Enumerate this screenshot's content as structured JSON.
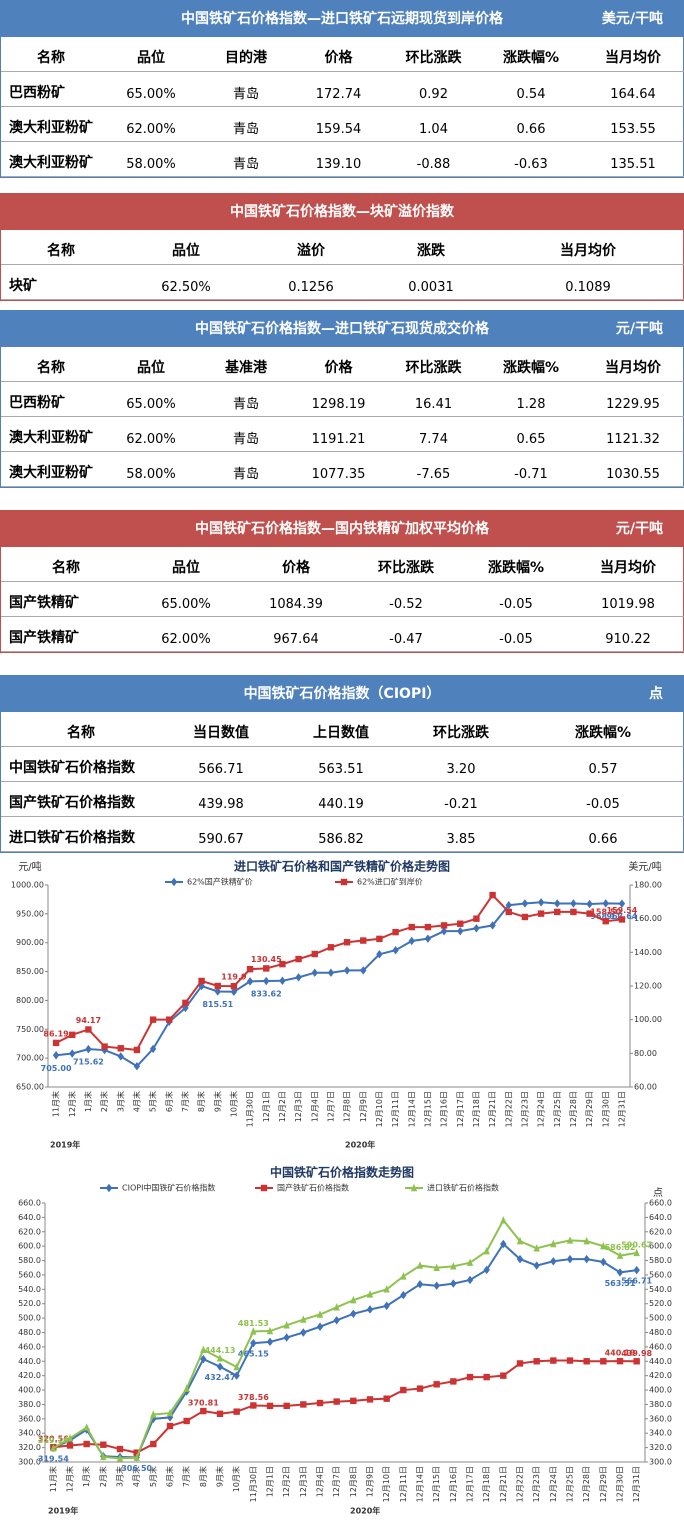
{
  "tables": [
    {
      "title": "中国铁矿石价格指数—进口铁矿石远期现货到岸价格",
      "unit": "美元/干吨",
      "color": "#4f81bd",
      "columns": [
        "名称",
        "品位",
        "目的港",
        "价格",
        "环比涨跌",
        "涨跌幅%",
        "当月均价"
      ],
      "rows": [
        [
          "巴西粉矿",
          "65.00%",
          "青岛",
          "172.74",
          "0.92",
          "0.54",
          "164.64"
        ],
        [
          "澳大利亚粉矿",
          "62.00%",
          "青岛",
          "159.54",
          "1.04",
          "0.66",
          "153.55"
        ],
        [
          "澳大利亚粉矿",
          "58.00%",
          "青岛",
          "139.10",
          "-0.88",
          "-0.63",
          "135.51"
        ]
      ]
    },
    {
      "title": "中国铁矿石价格指数—块矿溢价指数",
      "color": "#c0504d",
      "columns": [
        "名称",
        "品位",
        "溢价",
        "涨跌",
        "当月均价"
      ],
      "rows": [
        [
          "块矿",
          "62.50%",
          "0.1256",
          "0.0031",
          "0.1089"
        ]
      ]
    },
    {
      "title": "中国铁矿石价格指数—进口铁矿石现货成交价格",
      "unit": "元/干吨",
      "color": "#4f81bd",
      "columns": [
        "名称",
        "品位",
        "基准港",
        "价格",
        "环比涨跌",
        "涨跌幅%",
        "当月均价"
      ],
      "rows": [
        [
          "巴西粉矿",
          "65.00%",
          "青岛",
          "1298.19",
          "16.41",
          "1.28",
          "1229.95"
        ],
        [
          "澳大利亚粉矿",
          "62.00%",
          "青岛",
          "1191.21",
          "7.74",
          "0.65",
          "1121.32"
        ],
        [
          "澳大利亚粉矿",
          "58.00%",
          "青岛",
          "1077.35",
          "-7.65",
          "-0.71",
          "1030.55"
        ]
      ]
    },
    {
      "title": "中国铁矿石价格指数—国内铁精矿加权平均价格",
      "unit": "元/干吨",
      "color": "#c0504d",
      "columns": [
        "名称",
        "品位",
        "价格",
        "环比涨跌",
        "涨跌幅%",
        "当月均价"
      ],
      "rows": [
        [
          "国产铁精矿",
          "65.00%",
          "1084.39",
          "-0.52",
          "-0.05",
          "1019.98"
        ],
        [
          "国产铁精矿",
          "62.00%",
          "967.64",
          "-0.47",
          "-0.05",
          "910.22"
        ]
      ]
    },
    {
      "title": "中国铁矿石价格指数（CIOPI）",
      "unit": "点",
      "color": "#4f81bd",
      "columns": [
        "名称",
        "当日数值",
        "上日数值",
        "环比涨跌",
        "涨跌幅%"
      ],
      "rows": [
        [
          "中国铁矿石价格指数",
          "566.71",
          "563.51",
          "3.20",
          "0.57"
        ],
        [
          "国产铁矿石价格指数",
          "439.98",
          "440.19",
          "-0.21",
          "-0.05"
        ],
        [
          "进口铁矿石价格指数",
          "590.67",
          "586.82",
          "3.85",
          "0.66"
        ]
      ]
    }
  ],
  "chart_data": [
    {
      "type": "line",
      "title": "进口铁矿石价格和国产铁精矿价格走势图",
      "y_label": "元/吨",
      "y2_label": "美元/吨",
      "years": [
        "2019年",
        "2020年"
      ],
      "categories": [
        "11月末",
        "12月末",
        "1月末",
        "2月末",
        "3月末",
        "4月末",
        "5月末",
        "6月末",
        "7月末",
        "8月末",
        "9月末",
        "10月末",
        "11月30日",
        "12月1日",
        "12月2日",
        "12月3日",
        "12月4日",
        "12月7日",
        "12月8日",
        "12月9日",
        "12月10日",
        "12月11日",
        "12月14日",
        "12月15日",
        "12月16日",
        "12月17日",
        "12月18日",
        "12月21日",
        "12月22日",
        "12月23日",
        "12月24日",
        "12月25日",
        "12月28日",
        "12月29日",
        "12月30日",
        "12月31日"
      ],
      "ylim": [
        650,
        1000
      ],
      "yticks": [
        {
          "value": 650,
          "label": "650.00"
        },
        {
          "value": 700,
          "label": "700.00"
        },
        {
          "value": 750,
          "label": "750.00"
        },
        {
          "value": 800,
          "label": "800.00"
        },
        {
          "value": 850,
          "label": "850.00"
        },
        {
          "value": 900,
          "label": "900.00"
        },
        {
          "value": 950,
          "label": "950.00"
        },
        {
          "value": 1000,
          "label": "1000.00"
        }
      ],
      "y2lim": [
        60,
        180
      ],
      "y2ticks": [
        {
          "value": 60,
          "label": "60.00"
        },
        {
          "value": 80,
          "label": "80.00"
        },
        {
          "value": 100,
          "label": "100.00"
        },
        {
          "value": 120,
          "label": "120.00"
        },
        {
          "value": 140,
          "label": "140.00"
        },
        {
          "value": 160,
          "label": "160.00"
        },
        {
          "value": 180,
          "label": "180.00"
        }
      ],
      "series": [
        {
          "name": "62%国产铁精矿价",
          "color": "#3f72b8",
          "marker": "diamond",
          "values": [
            705.0,
            708,
            715.62,
            714,
            703,
            686,
            716,
            763,
            787,
            825,
            815.51,
            815,
            833,
            833.62,
            834,
            840,
            848,
            848,
            852,
            852,
            880,
            887,
            903,
            907,
            920,
            920,
            925,
            930,
            965,
            968,
            970,
            968,
            968,
            967,
            968.11,
            967.64
          ],
          "value_labels": [
            "705.00",
            null,
            "715.62",
            null,
            null,
            null,
            null,
            null,
            null,
            null,
            "815.51",
            null,
            null,
            "833.62",
            null,
            null,
            null,
            null,
            null,
            null,
            null,
            null,
            null,
            null,
            null,
            null,
            null,
            null,
            null,
            null,
            null,
            null,
            null,
            null,
            "968.11",
            "967.64"
          ]
        },
        {
          "name": "62%进口矿到岸价",
          "color": "#cc3333",
          "marker": "square",
          "axis": "y2",
          "values": [
            86.19,
            91,
            94.17,
            84,
            83,
            82,
            100,
            100,
            110,
            123,
            120,
            119.9,
            130,
            130.45,
            133,
            136,
            139,
            143,
            146,
            147,
            148,
            152,
            155,
            155,
            156,
            157,
            160,
            174,
            164,
            161,
            163,
            164,
            164,
            163,
            158.5,
            159.54
          ],
          "value_labels": [
            "86.19",
            null,
            "94.17",
            null,
            null,
            null,
            null,
            null,
            null,
            null,
            null,
            "119.9",
            null,
            "130.45",
            null,
            null,
            null,
            null,
            null,
            null,
            null,
            null,
            null,
            null,
            null,
            null,
            null,
            null,
            null,
            null,
            null,
            null,
            null,
            null,
            "158.50",
            "159.54"
          ]
        }
      ]
    },
    {
      "type": "line",
      "title": "中国铁矿石价格指数走势图",
      "y2_label": "点",
      "years": [
        "2019年",
        "2020年"
      ],
      "categories": [
        "11月末",
        "12月末",
        "1月末",
        "2月末",
        "3月末",
        "4月末",
        "5月末",
        "6月末",
        "7月末",
        "8月末",
        "9月末",
        "10月末",
        "11月30日",
        "12月1日",
        "12月2日",
        "12月3日",
        "12月4日",
        "12月7日",
        "12月8日",
        "12月9日",
        "12月10日",
        "12月11日",
        "12月14日",
        "12月15日",
        "12月16日",
        "12月17日",
        "12月18日",
        "12月21日",
        "12月22日",
        "12月23日",
        "12月24日",
        "12月25日",
        "12月28日",
        "12月29日",
        "12月30日",
        "12月31日"
      ],
      "ylim": [
        300,
        660
      ],
      "yticks": [
        {
          "value": 300,
          "label": "300.0"
        },
        {
          "value": 320,
          "label": "320.0"
        },
        {
          "value": 340,
          "label": "340.0"
        },
        {
          "value": 360,
          "label": "360.0"
        },
        {
          "value": 380,
          "label": "380.0"
        },
        {
          "value": 400,
          "label": "400.0"
        },
        {
          "value": 420,
          "label": "420.0"
        },
        {
          "value": 440,
          "label": "440.0"
        },
        {
          "value": 460,
          "label": "460.0"
        },
        {
          "value": 480,
          "label": "480.0"
        },
        {
          "value": 500,
          "label": "500.0"
        },
        {
          "value": 520,
          "label": "520.0"
        },
        {
          "value": 540,
          "label": "540.0"
        },
        {
          "value": 560,
          "label": "560.0"
        },
        {
          "value": 580,
          "label": "580.0"
        },
        {
          "value": 600,
          "label": "600.0"
        },
        {
          "value": 620,
          "label": "620.0"
        },
        {
          "value": 640,
          "label": "640.0"
        },
        {
          "value": 660,
          "label": "660.0"
        }
      ],
      "y2lim": [
        300,
        660
      ],
      "y2ticks": [
        {
          "value": 300,
          "label": "300.0"
        },
        {
          "value": 320,
          "label": "320.0"
        },
        {
          "value": 340,
          "label": "340.0"
        },
        {
          "value": 360,
          "label": "360.0"
        },
        {
          "value": 380,
          "label": "380.0"
        },
        {
          "value": 400,
          "label": "400.0"
        },
        {
          "value": 420,
          "label": "420.0"
        },
        {
          "value": 440,
          "label": "440.0"
        },
        {
          "value": 460,
          "label": "460.0"
        },
        {
          "value": 480,
          "label": "480.0"
        },
        {
          "value": 500,
          "label": "500.0"
        },
        {
          "value": 520,
          "label": "520.0"
        },
        {
          "value": 540,
          "label": "540.0"
        },
        {
          "value": 560,
          "label": "560.0"
        },
        {
          "value": 580,
          "label": "580.0"
        },
        {
          "value": 600,
          "label": "600.0"
        },
        {
          "value": 620,
          "label": "620.0"
        },
        {
          "value": 640,
          "label": "640.0"
        },
        {
          "value": 660,
          "label": "660.0"
        }
      ],
      "series": [
        {
          "name": "CIOPI中国铁矿石价格指数",
          "color": "#3f72b8",
          "marker": "diamond",
          "values": [
            319.54,
            330,
            345,
            308,
            307,
            306.5,
            360,
            362,
            398,
            443,
            432.47,
            420,
            465.15,
            467,
            473,
            480,
            488,
            497,
            506,
            512,
            517,
            532,
            547,
            545,
            548,
            553,
            567,
            603,
            582,
            573,
            579,
            582,
            582,
            578,
            563.51,
            566.71
          ],
          "value_labels": [
            "319.54",
            null,
            null,
            null,
            null,
            "306.50",
            null,
            null,
            null,
            null,
            "432.47",
            null,
            "465.15",
            null,
            null,
            null,
            null,
            null,
            null,
            null,
            null,
            null,
            null,
            null,
            null,
            null,
            null,
            null,
            null,
            null,
            null,
            null,
            null,
            null,
            "563.51",
            "566.71"
          ]
        },
        {
          "name": "国产铁矿石价格指数",
          "color": "#cc3333",
          "marker": "square",
          "values": [
            320.56,
            323,
            325,
            324,
            318,
            313,
            325,
            350,
            357,
            370.81,
            367,
            370,
            378.56,
            378,
            378,
            380,
            382,
            384,
            385,
            387,
            388,
            400,
            402,
            408,
            412,
            418,
            418,
            420,
            437,
            440,
            441,
            441,
            440,
            440,
            440.19,
            439.98
          ],
          "value_labels": [
            "320.56",
            null,
            null,
            null,
            null,
            null,
            null,
            null,
            null,
            "370.81",
            null,
            null,
            "378.56",
            null,
            null,
            null,
            null,
            null,
            null,
            null,
            null,
            null,
            null,
            null,
            null,
            null,
            null,
            null,
            null,
            null,
            null,
            null,
            null,
            null,
            "440.19",
            "439.98"
          ]
        },
        {
          "name": "进口铁矿石价格指数",
          "color": "#8dc24f",
          "marker": "triangle",
          "values": [
            319.1,
            333,
            348,
            307,
            305,
            306,
            366,
            368,
            402,
            456,
            444.13,
            432,
            481.53,
            482,
            490,
            498,
            505,
            515,
            525,
            533,
            540,
            558,
            573,
            570,
            572,
            577,
            593,
            636,
            607,
            597,
            603,
            608,
            607,
            600,
            586.82,
            590.67
          ],
          "value_labels": [
            "319.10",
            null,
            null,
            null,
            null,
            null,
            null,
            null,
            null,
            null,
            "444.13",
            null,
            "481.53",
            null,
            null,
            null,
            null,
            null,
            null,
            null,
            null,
            null,
            null,
            null,
            null,
            null,
            null,
            null,
            null,
            null,
            null,
            null,
            null,
            null,
            "586.82",
            "590.67"
          ]
        }
      ]
    }
  ]
}
